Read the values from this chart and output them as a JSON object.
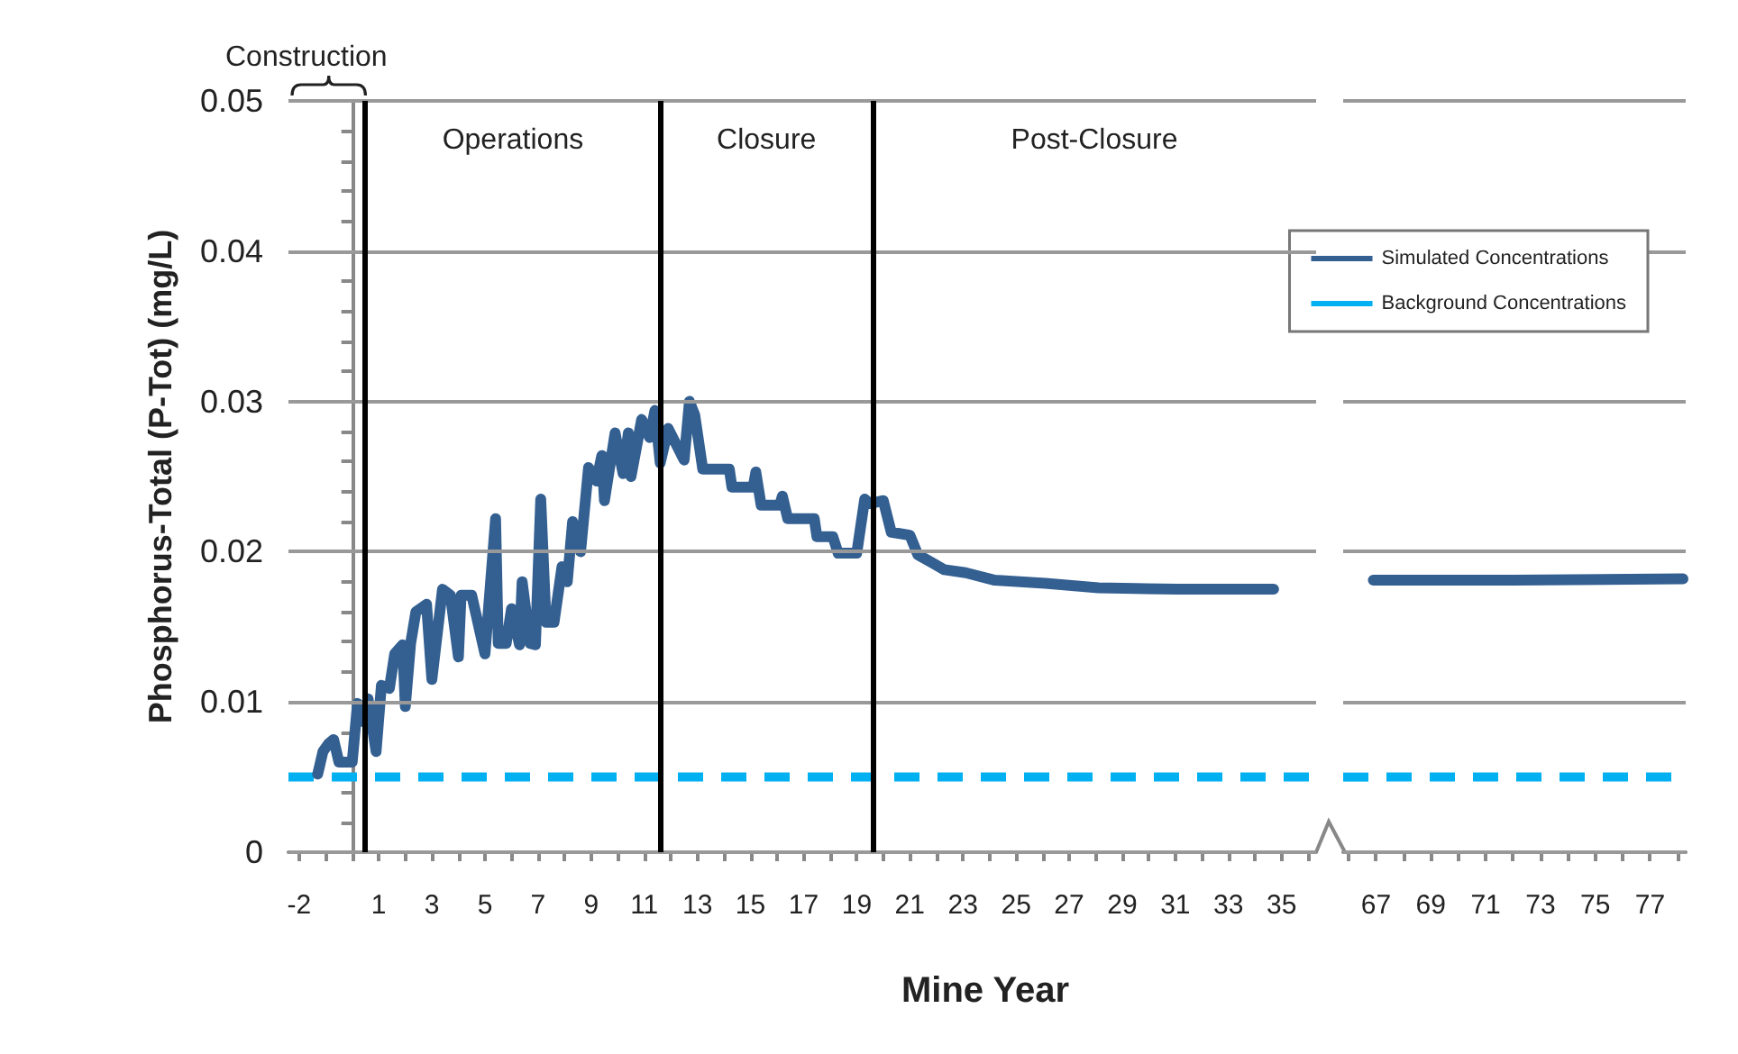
{
  "chart_data": [
    {
      "type": "line",
      "xlabel": "Mine Year",
      "ylabel": "Phosphorus-Total (P-Tot) (mg/L)",
      "xlim": [
        -2.4,
        36.3
      ],
      "xticks": [
        -2,
        {
          "value": -1,
          "label": null
        },
        {
          "value": 0,
          "label": null
        },
        1,
        {
          "value": 2,
          "label": null
        },
        3,
        {
          "value": 4,
          "label": null
        },
        5,
        {
          "value": 6,
          "label": null
        },
        7,
        {
          "value": 8,
          "label": null
        },
        9,
        {
          "value": 10,
          "label": null
        },
        11,
        {
          "value": 12,
          "label": null
        },
        13,
        {
          "value": 14,
          "label": null
        },
        15,
        {
          "value": 16,
          "label": null
        },
        17,
        {
          "value": 18,
          "label": null
        },
        19,
        {
          "value": 20,
          "label": null
        },
        21,
        {
          "value": 22,
          "label": null
        },
        23,
        {
          "value": 24,
          "label": null
        },
        25,
        {
          "value": 26,
          "label": null
        },
        27,
        {
          "value": 28,
          "label": null
        },
        29,
        {
          "value": 30,
          "label": null
        },
        31,
        {
          "value": 32,
          "label": null
        },
        33,
        {
          "value": 34,
          "label": null
        },
        35,
        {
          "value": 36,
          "label": null
        }
      ],
      "ylim": [
        0,
        0.05
      ],
      "yticks": [
        0,
        {
          "value": 0.002,
          "label": null
        },
        {
          "value": 0.004,
          "label": null
        },
        {
          "value": 0.006,
          "label": null
        },
        {
          "value": 0.008,
          "label": null
        },
        0.01,
        {
          "value": 0.012,
          "label": null
        },
        {
          "value": 0.014,
          "label": null
        },
        {
          "value": 0.016,
          "label": null
        },
        {
          "value": 0.018,
          "label": null
        },
        0.02,
        {
          "value": 0.022,
          "label": null
        },
        {
          "value": 0.024,
          "label": null
        },
        {
          "value": 0.026,
          "label": null
        },
        {
          "value": 0.028,
          "label": null
        },
        0.03,
        {
          "value": 0.032,
          "label": null
        },
        {
          "value": 0.034,
          "label": null
        },
        {
          "value": 0.036,
          "label": null
        },
        {
          "value": 0.038,
          "label": null
        },
        0.04,
        {
          "value": 0.042,
          "label": null
        },
        {
          "value": 0.044,
          "label": null
        },
        {
          "value": 0.046,
          "label": null
        },
        {
          "value": 0.048,
          "label": null
        },
        0.05
      ],
      "grid": "y",
      "legend": "top right",
      "series": [
        {
          "name": "Simulated Concentrations",
          "color": "#335f91",
          "x": [
            -1.3,
            -1.1,
            -0.9,
            -0.7,
            -0.5,
            0.0,
            0.2,
            0.4,
            0.6,
            0.9,
            1.1,
            1.4,
            1.6,
            1.9,
            2.0,
            2.2,
            2.4,
            2.8,
            3.0,
            3.4,
            3.7,
            4.0,
            4.1,
            4.5,
            5.0,
            5.4,
            5.5,
            5.8,
            6.0,
            6.3,
            6.4,
            6.7,
            6.9,
            7.1,
            7.3,
            7.6,
            7.9,
            8.1,
            8.3,
            8.6,
            8.9,
            9.2,
            9.4,
            9.5,
            9.9,
            10.2,
            10.4,
            10.5,
            10.9,
            11.2,
            11.4,
            11.6,
            11.9,
            12.5,
            12.7,
            12.9,
            13.2,
            14.2,
            14.3,
            15.1,
            15.2,
            15.4,
            16.1,
            16.2,
            16.4,
            17.4,
            17.5,
            18.1,
            18.3,
            19.0,
            19.3,
            19.5,
            20.0,
            20.3,
            21.0,
            21.3,
            21.8,
            22.3,
            23.1,
            24.2,
            26.1,
            28.1,
            31.1,
            34.7
          ],
          "values": [
            0.0052,
            0.0067,
            0.0072,
            0.0075,
            0.006,
            0.006,
            0.0099,
            0.0087,
            0.0102,
            0.0067,
            0.0111,
            0.0109,
            0.0132,
            0.0138,
            0.0097,
            0.0139,
            0.016,
            0.0165,
            0.0115,
            0.0175,
            0.0171,
            0.013,
            0.0171,
            0.0171,
            0.0132,
            0.0222,
            0.0139,
            0.0139,
            0.0162,
            0.0138,
            0.018,
            0.0139,
            0.0138,
            0.0235,
            0.0153,
            0.0153,
            0.019,
            0.018,
            0.022,
            0.02,
            0.0256,
            0.0247,
            0.0264,
            0.0234,
            0.0279,
            0.0252,
            0.0279,
            0.025,
            0.0288,
            0.0276,
            0.0294,
            0.0259,
            0.0282,
            0.0261,
            0.03,
            0.0291,
            0.0255,
            0.0255,
            0.0243,
            0.0243,
            0.0253,
            0.0231,
            0.0231,
            0.0237,
            0.0222,
            0.0222,
            0.021,
            0.021,
            0.0199,
            0.0199,
            0.0235,
            0.0232,
            0.0234,
            0.0213,
            0.0211,
            0.0198,
            0.0193,
            0.0188,
            0.0186,
            0.0181,
            0.0179,
            0.0176,
            0.0175,
            0.0175
          ]
        },
        {
          "name": "Background Concentrations",
          "color": "#00b0f0",
          "line_style": "dashed",
          "x": [
            -2.4,
            36.3
          ],
          "values": [
            0.005,
            0.005
          ]
        }
      ],
      "ref_lines": [
        {
          "axis": "x",
          "value": 0.5,
          "color": "#000000"
        },
        {
          "axis": "x",
          "value": 11.6,
          "color": "#000000"
        },
        {
          "axis": "x",
          "value": 19.6,
          "color": "#000000"
        }
      ],
      "annotations": [
        "Construction",
        "Operations",
        "Closure",
        "Post-Closure"
      ]
    },
    {
      "type": "line",
      "xlim": [
        65.8,
        78.3
      ],
      "xticks": [
        {
          "value": 66,
          "label": null
        },
        67,
        {
          "value": 68,
          "label": null
        },
        69,
        {
          "value": 70,
          "label": null
        },
        71,
        {
          "value": 72,
          "label": null
        },
        73,
        {
          "value": 74,
          "label": null
        },
        75,
        {
          "value": 76,
          "label": null
        },
        77,
        {
          "value": 78,
          "label": null
        }
      ],
      "ylim": [
        0,
        0.05
      ],
      "yticks": [
        0,
        0.01,
        0.02,
        0.03,
        0.04,
        0.05
      ],
      "grid": "y",
      "tick_labels": "x",
      "series": [
        {
          "color": "#335f91",
          "x": [
            66.9,
            72,
            78.2
          ],
          "values": [
            0.0181,
            0.0181,
            0.0182
          ]
        },
        {
          "color": "#00b0f0",
          "line_style": "dashed",
          "x": [
            65.8,
            78.3
          ],
          "values": [
            0.005,
            0.005
          ]
        }
      ]
    }
  ]
}
